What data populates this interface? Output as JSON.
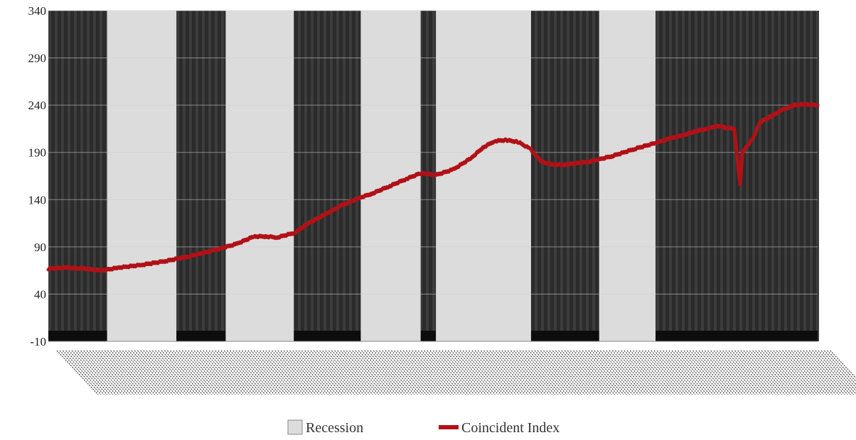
{
  "chart_data": {
    "type": "line",
    "title": "",
    "xlabel": "",
    "ylabel": "",
    "ylim": [
      -10,
      340
    ],
    "y_ticks": [
      -10,
      40,
      90,
      140,
      190,
      240,
      290,
      340
    ],
    "x_range": [
      1959.0,
      2024.5
    ],
    "grid": true,
    "legend_position": "bottom-center",
    "colors": {
      "series": "#b11116",
      "recession_band": "#dcdcdc",
      "expansion_band": "#2b2b2b",
      "grid": "#cfcfcf"
    },
    "legend": [
      {
        "label": "Recession",
        "symbol": "box"
      },
      {
        "label": "Coincident Index",
        "symbol": "line"
      }
    ],
    "recession_bands": [
      {
        "start": 1964.0,
        "end": 1969.9
      },
      {
        "start": 1974.1,
        "end": 1979.9
      },
      {
        "start": 1985.6,
        "end": 1990.7
      },
      {
        "start": 1992.0,
        "end": 2000.1
      },
      {
        "start": 2005.9,
        "end": 2010.7
      }
    ],
    "series": [
      {
        "name": "Coincident Index",
        "x": [
          1959.0,
          1960.5,
          1962.0,
          1963.5,
          1965.0,
          1967.0,
          1969.0,
          1971.0,
          1973.0,
          1975.0,
          1976.5,
          1977.5,
          1978.5,
          1980.0,
          1981.0,
          1982.5,
          1984.0,
          1985.5,
          1986.5,
          1988.0,
          1989.5,
          1990.7,
          1992.0,
          1993.5,
          1995.0,
          1996.0,
          1997.0,
          1998.0,
          1999.0,
          2000.0,
          2001.0,
          2002.0,
          2003.0,
          2005.0,
          2007.0,
          2009.0,
          2011.0,
          2012.0,
          2013.0,
          2014.0,
          2015.0,
          2016.0,
          2016.8,
          2017.4,
          2017.9,
          2018.1,
          2018.4,
          2019.0,
          2019.6,
          2020.5,
          2021.5,
          2022.5,
          2023.5,
          2024.5
        ],
        "values": [
          67,
          68,
          67,
          65,
          68,
          71,
          75,
          80,
          86,
          93,
          101,
          101,
          100,
          105,
          114,
          124,
          134,
          142,
          146,
          154,
          162,
          168,
          166,
          172,
          184,
          195,
          202,
          203,
          201,
          194,
          180,
          177,
          177,
          180,
          186,
          194,
          201,
          205,
          208,
          212,
          215,
          218,
          216,
          215,
          155,
          190,
          195,
          205,
          222,
          228,
          235,
          240,
          241,
          240
        ]
      }
    ]
  }
}
